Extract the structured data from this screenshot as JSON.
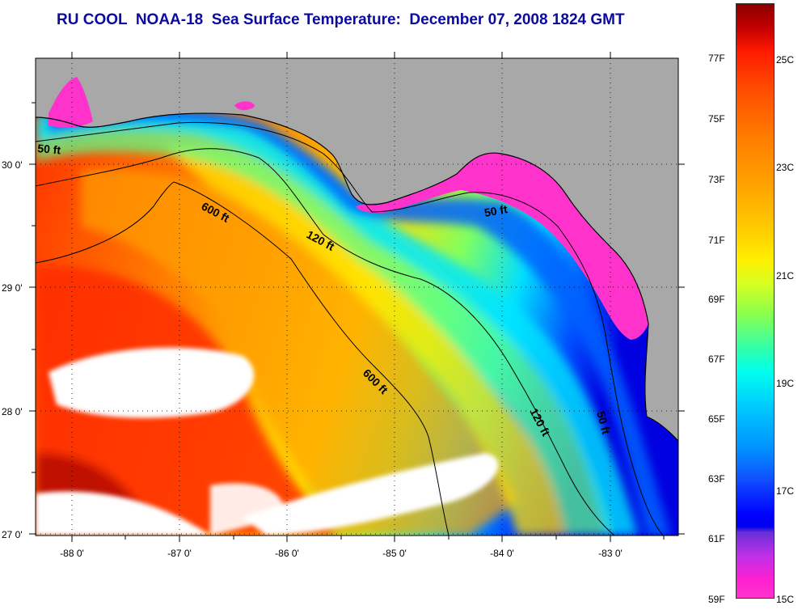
{
  "title": "RU COOL  NOAA-18  Sea Surface Temperature:  December 07, 2008 1824 GMT",
  "map": {
    "x_ticks": [
      "-88 0'",
      "-87 0'",
      "-86 0'",
      "-85 0'",
      "-84 0'",
      "-83 0'"
    ],
    "y_ticks": [
      "30 0'",
      "29 0'",
      "28 0'",
      "27 0'"
    ],
    "contour_labels": {
      "c50a": "50 ft",
      "c600a": "600 ft",
      "c120a": "120 ft",
      "c50b": "50 ft",
      "c600b": "600 ft",
      "c120b": "120 ft",
      "c50c": "50 ft"
    },
    "colors": {
      "land": "#a8a8a8",
      "cloud": "#ffffff",
      "nearshore_magenta": "#ff33cc",
      "warm_red": "#ff2000",
      "orange": "#ff9000",
      "yellow": "#ffe800",
      "cyan": "#00e8ff",
      "blue": "#0040ff"
    }
  },
  "colorbar": {
    "f_labels": [
      "77F",
      "75F",
      "73F",
      "71F",
      "69F",
      "67F",
      "65F",
      "63F",
      "61F",
      "59F"
    ],
    "c_labels": [
      "25C",
      "23C",
      "21C",
      "19C",
      "17C",
      "15C"
    ]
  }
}
